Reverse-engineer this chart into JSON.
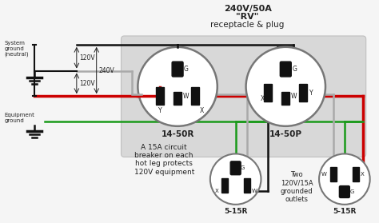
{
  "bg_color": "#f5f5f5",
  "plug_bg": "#e0e0e0",
  "wire_black": "#111111",
  "wire_red": "#cc0000",
  "wire_green": "#1a9a1a",
  "wire_gray": "#aaaaaa",
  "terminal_color": "#111111",
  "text_color": "#222222",
  "title_line1": "240V/50A",
  "title_line2": "\"RV\"",
  "title_line3": "receptacle & plug",
  "label_system_ground": "System\nground\n(neutral)",
  "label_equipment_ground": "Equipment\nground",
  "label_1450R": "14-50R",
  "label_1450P": "14-50P",
  "label_515R": "5-15R",
  "label_120V": "120V",
  "label_240V": "240V",
  "circuit_note": "A 15A circuit\nbreaker on each\nhot leg protects\n120V equipment",
  "outlets_note": "Two\n120V/15A\ngrounded\noutlets"
}
